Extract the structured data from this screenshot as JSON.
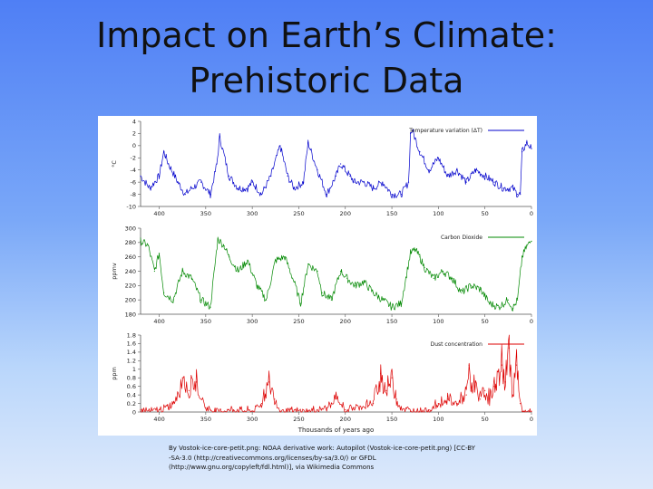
{
  "slide": {
    "title_line1": "Impact on Earth’s Climate:",
    "title_line2": "Prehistoric Data",
    "caption_line1": "By Vostok-ice-core-petit.png: NOAA derivative work: Autopilot (Vostok-ice-core-petit.png) [CC-BY",
    "caption_line2": "-SA-3.0 (http://creativecommons.org/licenses/by-sa/3.0/) or GFDL",
    "caption_line3": "(http://www.gnu.org/copyleft/fdl.html)], via Wikimedia Commons"
  },
  "chart_data": [
    {
      "type": "line",
      "id": "temperature",
      "color": "#0000cc",
      "ylabel": "°C",
      "legend": "Temperature variation (ΔT)",
      "ylim": [
        -10,
        4
      ],
      "yticks": [
        4,
        2,
        0,
        -2,
        -4,
        -6,
        -8,
        -10
      ],
      "xlim": [
        420,
        0
      ],
      "xticks": [
        400,
        350,
        300,
        250,
        200,
        150,
        100,
        50,
        0
      ],
      "x": [
        420,
        410,
        400,
        395,
        390,
        380,
        372,
        365,
        355,
        345,
        338,
        335,
        325,
        315,
        305,
        300,
        290,
        280,
        270,
        262,
        255,
        245,
        240,
        230,
        220,
        210,
        205,
        195,
        190,
        180,
        170,
        160,
        150,
        140,
        132,
        130,
        128,
        120,
        110,
        100,
        90,
        80,
        70,
        60,
        50,
        40,
        30,
        20,
        15,
        12,
        10,
        5,
        0
      ],
      "y": [
        -5,
        -7,
        -5,
        -1,
        -3,
        -6,
        -8,
        -7,
        -6,
        -8,
        -3,
        1.5,
        -5,
        -7,
        -7,
        -6,
        -8,
        -5,
        0,
        -5,
        -7,
        -6,
        0.5,
        -4,
        -8,
        -5,
        -3,
        -5,
        -6,
        -6,
        -7,
        -6,
        -8,
        -8,
        -6,
        2,
        2.5,
        -1,
        -4,
        -2,
        -5,
        -4,
        -6,
        -4,
        -5,
        -6,
        -7,
        -7,
        -8,
        -8,
        -1,
        0.5,
        -0.5
      ]
    },
    {
      "type": "line",
      "id": "co2",
      "color": "#008800",
      "ylabel": "ppmv",
      "legend": "Carbon Dioxide",
      "ylim": [
        180,
        300
      ],
      "yticks": [
        300,
        280,
        260,
        240,
        220,
        200,
        180
      ],
      "xlim": [
        420,
        0
      ],
      "xticks": [
        400,
        350,
        300,
        250,
        200,
        150,
        100,
        50,
        0
      ],
      "x": [
        420,
        412,
        405,
        400,
        395,
        385,
        375,
        365,
        355,
        345,
        337,
        330,
        325,
        315,
        305,
        295,
        285,
        275,
        265,
        255,
        248,
        240,
        230,
        225,
        215,
        205,
        198,
        190,
        180,
        170,
        160,
        150,
        140,
        130,
        125,
        120,
        115,
        105,
        95,
        85,
        75,
        65,
        55,
        45,
        35,
        25,
        20,
        15,
        10,
        5,
        0
      ],
      "y": [
        282,
        276,
        240,
        265,
        210,
        200,
        240,
        230,
        200,
        190,
        285,
        275,
        260,
        240,
        255,
        220,
        200,
        255,
        260,
        225,
        195,
        250,
        240,
        210,
        200,
        240,
        230,
        220,
        225,
        210,
        200,
        190,
        195,
        265,
        270,
        260,
        245,
        230,
        240,
        230,
        210,
        220,
        215,
        195,
        190,
        200,
        188,
        200,
        260,
        275,
        282
      ]
    },
    {
      "type": "line",
      "id": "dust",
      "color": "#dd0000",
      "ylabel": "ppm",
      "legend": "Dust concentration",
      "ylim": [
        0,
        1.8
      ],
      "yticks": [
        1.8,
        1.6,
        1.4,
        1.2,
        1,
        0.8,
        0.6,
        0.4,
        0.2,
        0
      ],
      "xlim": [
        420,
        0
      ],
      "xticks": [
        400,
        350,
        300,
        250,
        200,
        150,
        100,
        50,
        0
      ],
      "xlabel": "Thousands of years ago",
      "x": [
        420,
        410,
        400,
        390,
        382,
        375,
        368,
        360,
        350,
        345,
        340,
        320,
        300,
        290,
        282,
        276,
        270,
        260,
        240,
        220,
        210,
        200,
        190,
        170,
        162,
        156,
        150,
        145,
        140,
        130,
        120,
        110,
        100,
        90,
        80,
        70,
        67,
        65,
        60,
        55,
        50,
        45,
        40,
        32,
        28,
        24,
        20,
        16,
        12,
        10,
        0
      ],
      "y": [
        0.05,
        0.02,
        0.05,
        0.1,
        0.3,
        0.8,
        0.5,
        0.7,
        0.1,
        0.05,
        0.02,
        0.05,
        0.02,
        0.2,
        0.7,
        0.3,
        0.02,
        0.02,
        0.01,
        0.1,
        0.3,
        0.05,
        0.1,
        0.2,
        0.9,
        0.5,
        0.8,
        0.3,
        0.1,
        0.02,
        0.02,
        0.05,
        0.2,
        0.3,
        0.2,
        0.4,
        1.1,
        0.5,
        0.7,
        0.3,
        0.5,
        0.3,
        0.6,
        1.1,
        0.7,
        1.5,
        0.4,
        1.1,
        0.2,
        0.02,
        0.02
      ]
    }
  ]
}
